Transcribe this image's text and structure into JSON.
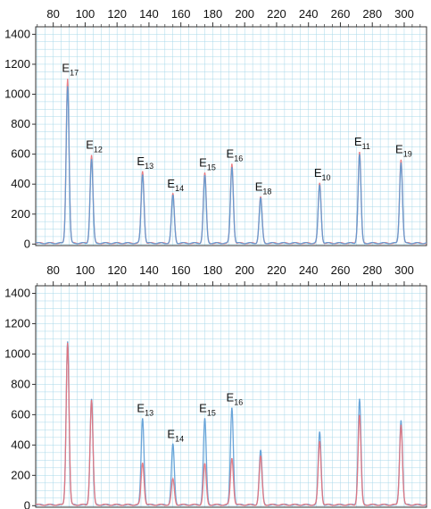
{
  "chart_data": [
    {
      "type": "line",
      "panel": "top",
      "x_ticks": [
        80,
        100,
        120,
        140,
        160,
        180,
        200,
        220,
        240,
        260,
        280,
        300
      ],
      "y_ticks": [
        0,
        200,
        400,
        600,
        800,
        1000,
        1200,
        1400
      ],
      "xlim": [
        69,
        314
      ],
      "ylim": [
        -10,
        1450
      ],
      "grid": true,
      "series": [
        {
          "color": "#e8727a",
          "peaks": [
            {
              "x": 89,
              "y": 1100,
              "label": "E",
              "sub": "17"
            },
            {
              "x": 104,
              "y": 590,
              "label": "E",
              "sub": "12"
            },
            {
              "x": 136,
              "y": 480,
              "label": "E",
              "sub": "13"
            },
            {
              "x": 155,
              "y": 330,
              "label": "E",
              "sub": "14"
            },
            {
              "x": 175,
              "y": 470,
              "label": "E",
              "sub": "15"
            },
            {
              "x": 192,
              "y": 530,
              "label": "E",
              "sub": "16"
            },
            {
              "x": 210,
              "y": 310,
              "label": "E",
              "sub": "18"
            },
            {
              "x": 247,
              "y": 400,
              "label": "E",
              "sub": "10"
            },
            {
              "x": 272,
              "y": 610,
              "label": "E",
              "sub": "11"
            },
            {
              "x": 298,
              "y": 560,
              "label": "E",
              "sub": "19"
            }
          ]
        },
        {
          "color": "#5b9bd5",
          "peaks": [
            {
              "x": 89,
              "y": 1050
            },
            {
              "x": 104,
              "y": 560
            },
            {
              "x": 136,
              "y": 460
            },
            {
              "x": 155,
              "y": 320
            },
            {
              "x": 175,
              "y": 450
            },
            {
              "x": 192,
              "y": 510
            },
            {
              "x": 210,
              "y": 300
            },
            {
              "x": 247,
              "y": 390
            },
            {
              "x": 272,
              "y": 590
            },
            {
              "x": 298,
              "y": 540
            }
          ]
        }
      ]
    },
    {
      "type": "line",
      "panel": "bottom",
      "x_ticks": [
        80,
        100,
        120,
        140,
        160,
        180,
        200,
        220,
        240,
        260,
        280,
        300
      ],
      "y_ticks": [
        0,
        200,
        400,
        600,
        800,
        1000,
        1200,
        1400
      ],
      "xlim": [
        69,
        314
      ],
      "ylim": [
        -10,
        1450
      ],
      "grid": true,
      "series": [
        {
          "color": "#5b9bd5",
          "peaks": [
            {
              "x": 89,
              "y": 1080
            },
            {
              "x": 104,
              "y": 700
            },
            {
              "x": 136,
              "y": 570,
              "label": "E",
              "sub": "13"
            },
            {
              "x": 155,
              "y": 400,
              "label": "E",
              "sub": "14"
            },
            {
              "x": 175,
              "y": 570,
              "label": "E",
              "sub": "15"
            },
            {
              "x": 192,
              "y": 640,
              "label": "E",
              "sub": "16"
            },
            {
              "x": 210,
              "y": 360
            },
            {
              "x": 247,
              "y": 480
            },
            {
              "x": 272,
              "y": 700
            },
            {
              "x": 298,
              "y": 560
            }
          ]
        },
        {
          "color": "#e8727a",
          "peaks": [
            {
              "x": 89,
              "y": 1070
            },
            {
              "x": 104,
              "y": 690
            },
            {
              "x": 136,
              "y": 280
            },
            {
              "x": 155,
              "y": 170
            },
            {
              "x": 175,
              "y": 270
            },
            {
              "x": 192,
              "y": 310
            },
            {
              "x": 210,
              "y": 320
            },
            {
              "x": 247,
              "y": 420
            },
            {
              "x": 272,
              "y": 590
            },
            {
              "x": 298,
              "y": 530
            }
          ]
        }
      ]
    }
  ]
}
